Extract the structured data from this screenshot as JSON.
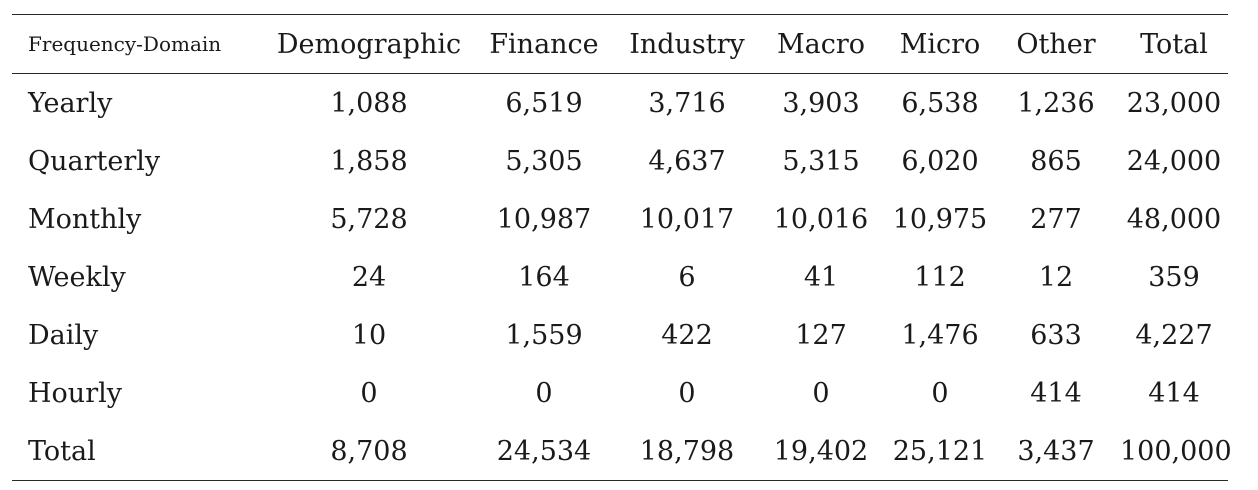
{
  "table": {
    "columns": [
      "Frequency-Domain",
      "Demographic",
      "Finance",
      "Industry",
      "Macro",
      "Micro",
      "Other",
      "Total"
    ],
    "rows": [
      [
        "Yearly",
        "1,088",
        "6,519",
        "3,716",
        "3,903",
        "6,538",
        "1,236",
        "23,000"
      ],
      [
        "Quarterly",
        "1,858",
        "5,305",
        "4,637",
        "5,315",
        "6,020",
        "865",
        "24,000"
      ],
      [
        "Monthly",
        "5,728",
        "10,987",
        "10,017",
        "10,016",
        "10,975",
        "277",
        "48,000"
      ],
      [
        "Weekly",
        "24",
        "164",
        "6",
        "41",
        "112",
        "12",
        "359"
      ],
      [
        "Daily",
        "10",
        "1,559",
        "422",
        "127",
        "1,476",
        "633",
        "4,227"
      ],
      [
        "Hourly",
        "0",
        "0",
        "0",
        "0",
        "0",
        "414",
        "414"
      ],
      [
        "Total",
        "8,708",
        "24,534",
        "18,798",
        "19,402",
        "25,121",
        "3,437",
        "100,000"
      ]
    ]
  }
}
